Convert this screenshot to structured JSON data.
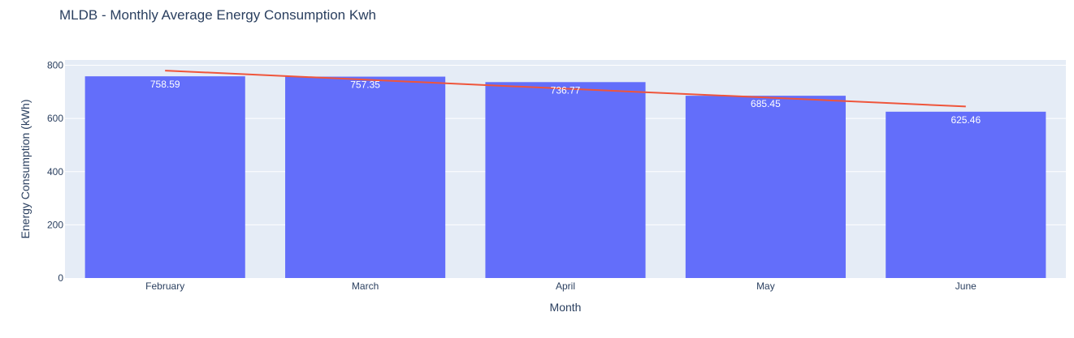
{
  "chart_data": {
    "type": "bar",
    "title": "MLDB - Monthly Average Energy Consumption Kwh",
    "xlabel": "Month",
    "ylabel": "Energy Consumption (kWh)",
    "categories": [
      "February",
      "March",
      "April",
      "May",
      "June"
    ],
    "series": [
      {
        "type": "bar",
        "values": [
          758.59,
          757.35,
          736.77,
          685.45,
          625.46
        ],
        "labels": [
          "758.59",
          "757.35",
          "736.77",
          "685.45",
          "625.46"
        ],
        "color": "#636efa"
      },
      {
        "type": "line",
        "values": [
          780,
          746,
          712,
          679,
          645
        ],
        "color": "#ef553b"
      }
    ],
    "yticks": [
      0,
      200,
      400,
      600,
      800
    ],
    "ytick_labels": [
      "0",
      "200",
      "400",
      "600",
      "800"
    ],
    "ylim": [
      0,
      820
    ],
    "grid": true,
    "colors": {
      "plot_bg": "#e5ecf6",
      "grid": "#ffffff",
      "text": "#2a3f5f"
    }
  }
}
